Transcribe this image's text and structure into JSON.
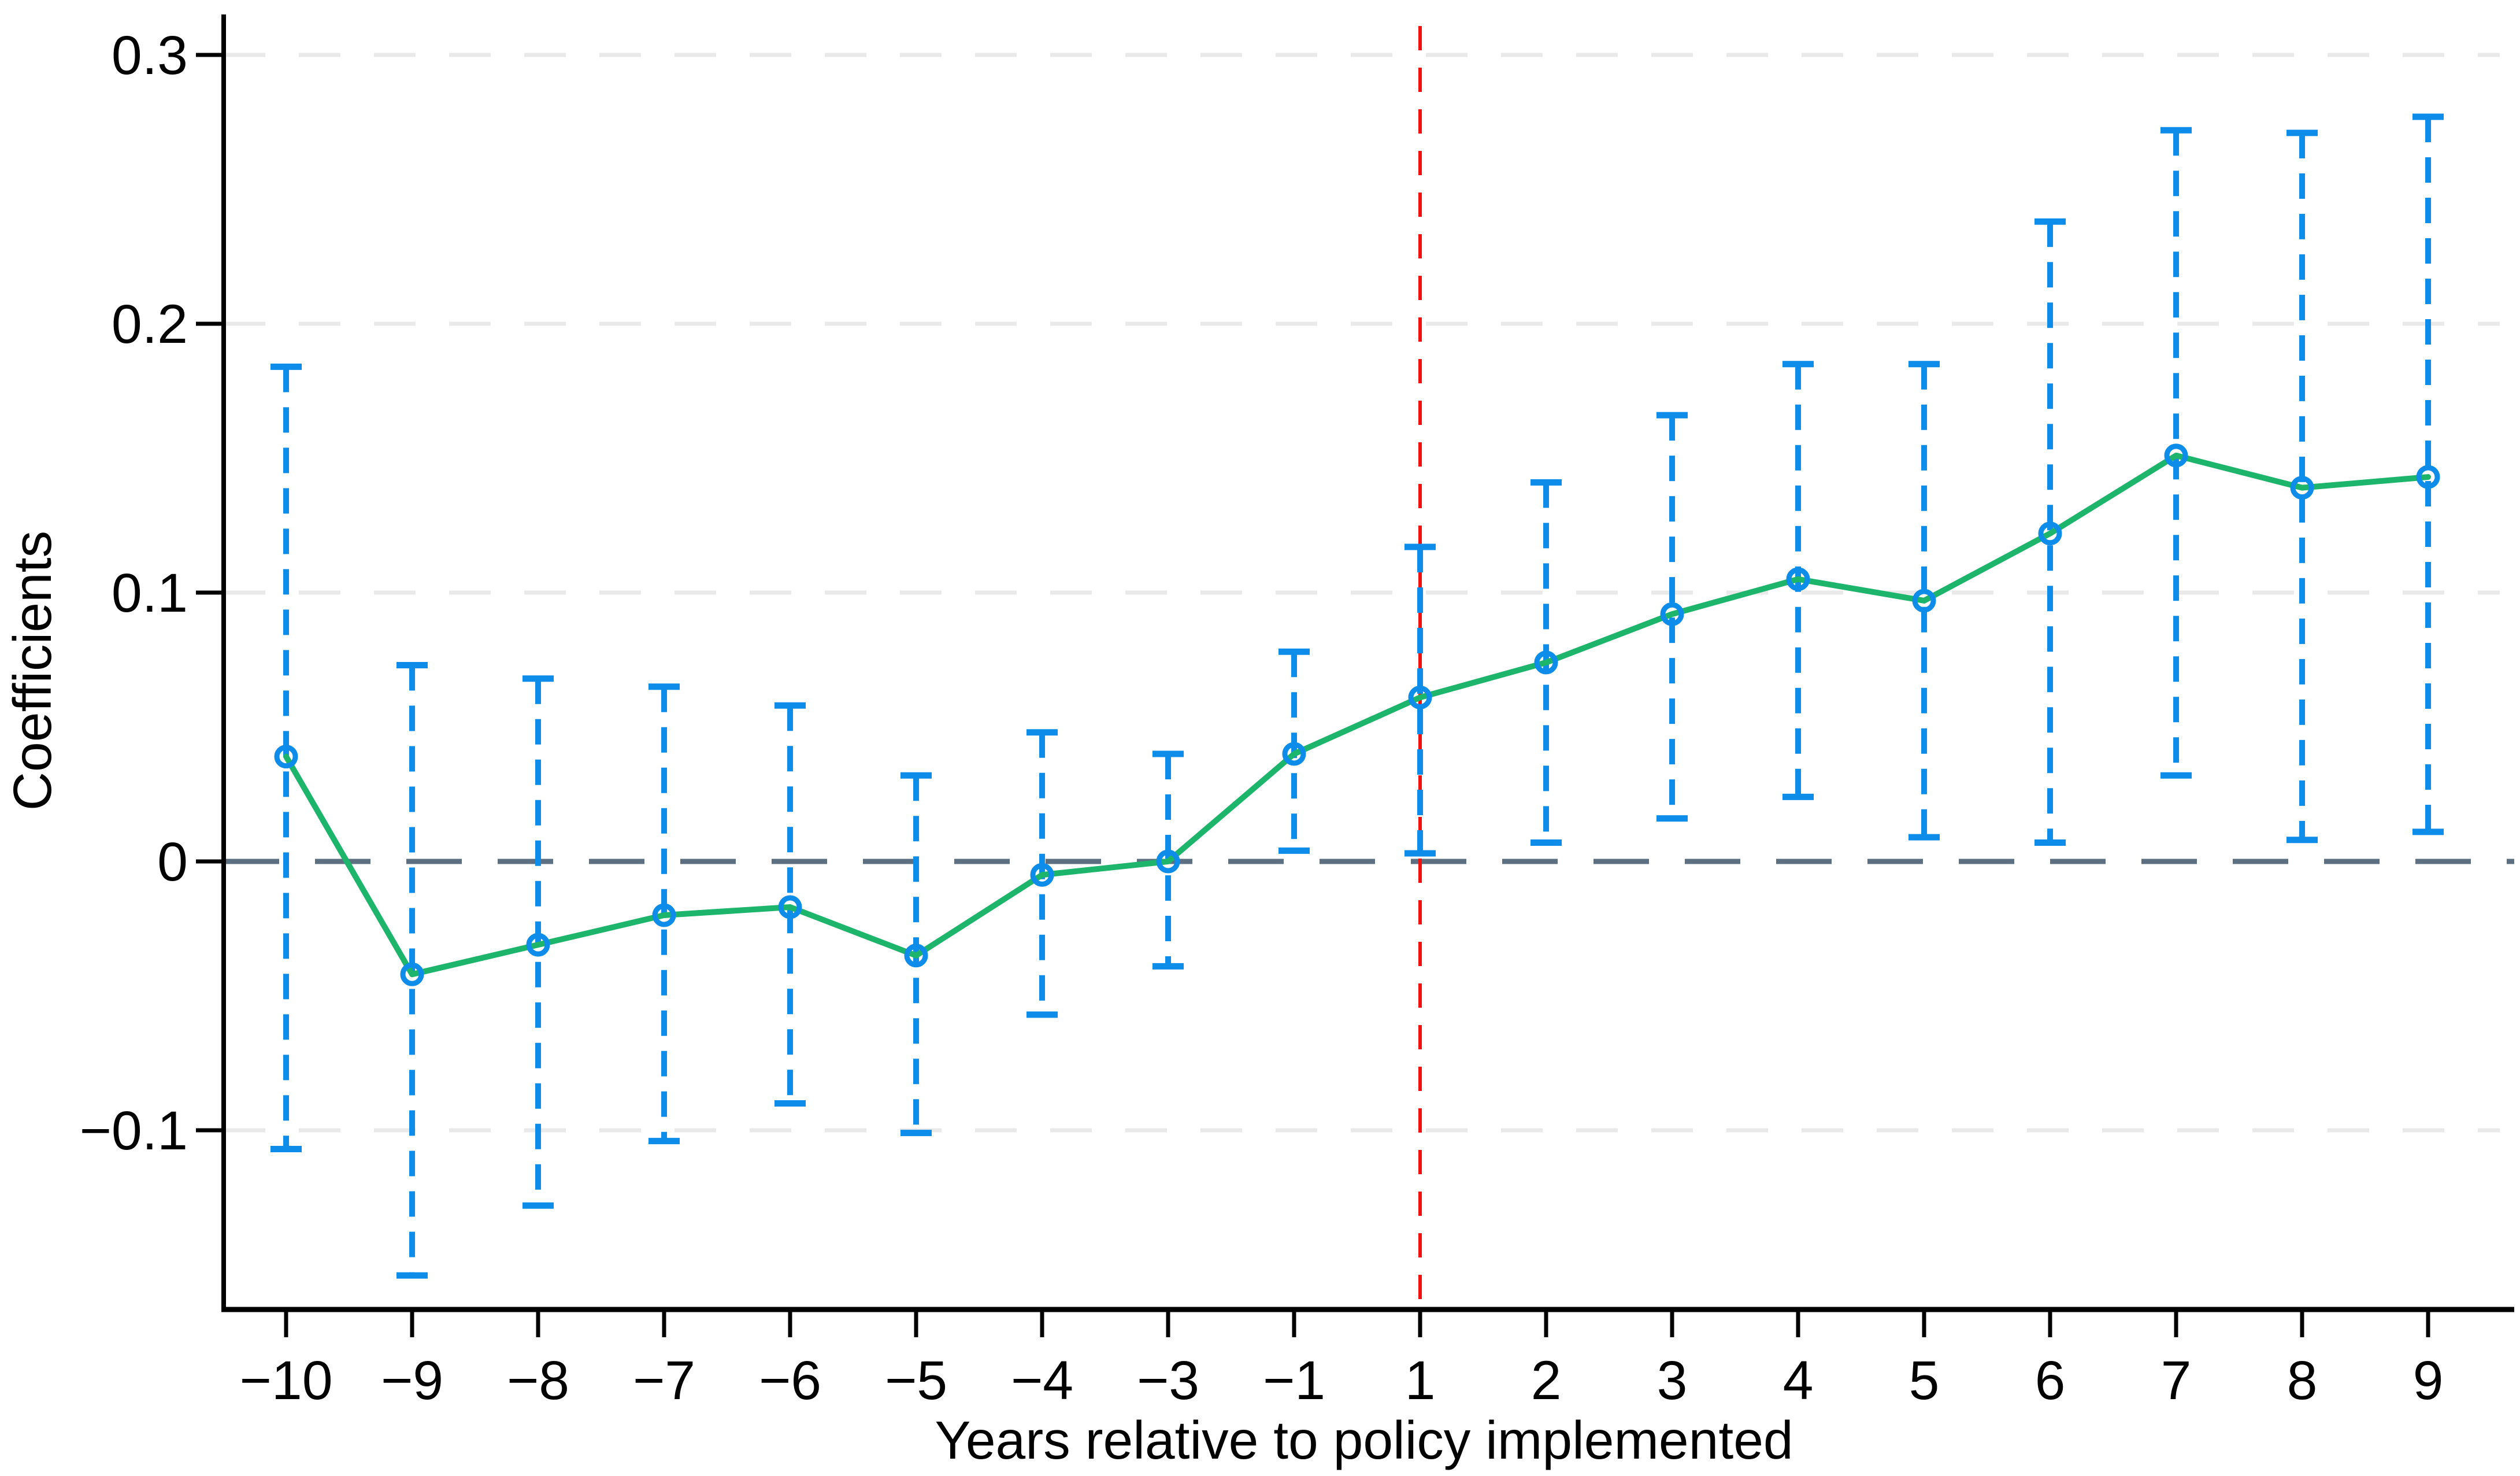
{
  "chart_data": {
    "type": "line",
    "subtype": "event-study-coefficient-plot",
    "title": "",
    "xlabel": "Years relative to policy implemented",
    "ylabel": "Coefficients",
    "categories": [
      -10,
      -9,
      -8,
      -7,
      -6,
      -5,
      -4,
      -3,
      -1,
      1,
      2,
      3,
      4,
      5,
      6,
      7,
      8,
      9
    ],
    "category_labels": [
      "−10",
      "−9",
      "−8",
      "−7",
      "−6",
      "−5",
      "−4",
      "−3",
      "−1",
      "1",
      "2",
      "3",
      "4",
      "5",
      "6",
      "7",
      "8",
      "9"
    ],
    "series": [
      {
        "name": "coefficient",
        "values": [
          0.039,
          -0.042,
          -0.031,
          -0.02,
          -0.017,
          -0.035,
          -0.005,
          0.0,
          0.04,
          0.061,
          0.074,
          0.092,
          0.105,
          0.097,
          0.122,
          0.151,
          0.139,
          0.143
        ]
      },
      {
        "name": "ci_lower",
        "values": [
          -0.107,
          -0.154,
          -0.128,
          -0.104,
          -0.09,
          -0.101,
          -0.057,
          -0.039,
          0.004,
          0.003,
          0.007,
          0.016,
          0.024,
          0.009,
          0.007,
          0.032,
          0.008,
          0.011
        ]
      },
      {
        "name": "ci_upper",
        "values": [
          0.184,
          0.073,
          0.068,
          0.065,
          0.058,
          0.032,
          0.048,
          0.04,
          0.078,
          0.117,
          0.141,
          0.166,
          0.185,
          0.185,
          0.238,
          0.272,
          0.271,
          0.277
        ]
      }
    ],
    "y_ticks": [
      0.3,
      0.2,
      0.1,
      0,
      -0.1
    ],
    "y_tick_labels": [
      "0.3",
      "0.2",
      "0.1",
      "0",
      "−0.1"
    ],
    "ylim": [
      -0.167,
      0.312
    ],
    "grid": "horizontal-dashed",
    "legend": "none",
    "reference_lines": {
      "zero_line_value": 0,
      "event_line_category_label": "1"
    },
    "colors": {
      "marker_and_ci": "#0e8ce9",
      "estimate_line": "#1db56b",
      "event_line": "#f3100f",
      "zero_line": "#5c7082",
      "gridline": "#e9e9e9",
      "axis": "#000000",
      "background": "#ffffff"
    }
  }
}
